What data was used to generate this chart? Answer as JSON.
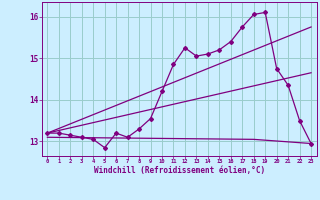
{
  "xlabel": "Windchill (Refroidissement éolien,°C)",
  "background_color": "#cceeff",
  "line_color": "#800080",
  "grid_color": "#99cccc",
  "xlim": [
    -0.5,
    23.5
  ],
  "ylim": [
    12.65,
    16.35
  ],
  "yticks": [
    13,
    14,
    15,
    16
  ],
  "xticks": [
    0,
    1,
    2,
    3,
    4,
    5,
    6,
    7,
    8,
    9,
    10,
    11,
    12,
    13,
    14,
    15,
    16,
    17,
    18,
    19,
    20,
    21,
    22,
    23
  ],
  "series1_x": [
    0,
    1,
    2,
    3,
    4,
    5,
    6,
    7,
    8,
    9,
    10,
    11,
    12,
    13,
    14,
    15,
    16,
    17,
    18,
    19,
    20,
    21,
    22,
    23
  ],
  "series1_y": [
    13.2,
    13.2,
    13.15,
    13.1,
    13.05,
    12.85,
    13.2,
    13.1,
    13.3,
    13.55,
    14.2,
    14.85,
    15.25,
    15.05,
    15.1,
    15.2,
    15.4,
    15.75,
    16.05,
    16.1,
    14.75,
    14.35,
    13.5,
    12.95
  ],
  "series2_x": [
    0,
    18,
    23
  ],
  "series2_y": [
    13.1,
    13.05,
    12.95
  ],
  "series3_x": [
    0,
    23
  ],
  "series3_y": [
    13.2,
    15.75
  ],
  "series4_x": [
    0,
    23
  ],
  "series4_y": [
    13.2,
    14.65
  ]
}
